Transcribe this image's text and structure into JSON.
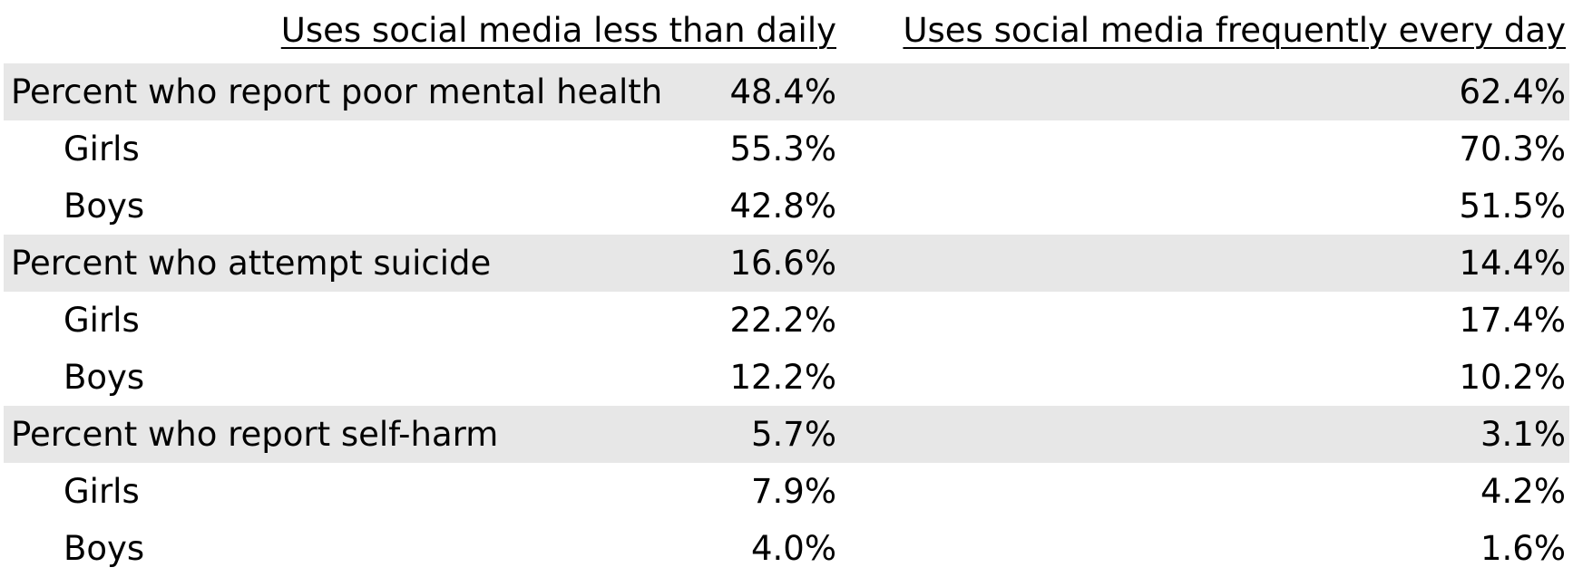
{
  "chart_data": {
    "type": "table",
    "columns": [
      "Uses social media less than daily",
      "Uses social media frequently every day"
    ],
    "rows": [
      {
        "label": "Percent who report poor mental health",
        "level": "main",
        "values": [
          "48.4%",
          "62.4%"
        ]
      },
      {
        "label": "Girls",
        "level": "sub",
        "values": [
          "55.3%",
          "70.3%"
        ]
      },
      {
        "label": "Boys",
        "level": "sub",
        "values": [
          "42.8%",
          "51.5%"
        ]
      },
      {
        "label": "Percent who attempt suicide",
        "level": "main",
        "values": [
          "16.6%",
          "14.4%"
        ]
      },
      {
        "label": "Girls",
        "level": "sub",
        "values": [
          "22.2%",
          "17.4%"
        ]
      },
      {
        "label": "Boys",
        "level": "sub",
        "values": [
          "12.2%",
          "10.2%"
        ]
      },
      {
        "label": "Percent who report self-harm",
        "level": "main",
        "values": [
          "5.7%",
          "3.1%"
        ]
      },
      {
        "label": "Girls",
        "level": "sub",
        "values": [
          "7.9%",
          "4.2%"
        ]
      },
      {
        "label": "Boys",
        "level": "sub",
        "values": [
          "4.0%",
          "1.6%"
        ]
      }
    ],
    "shading_color": "#e7e7e7"
  }
}
